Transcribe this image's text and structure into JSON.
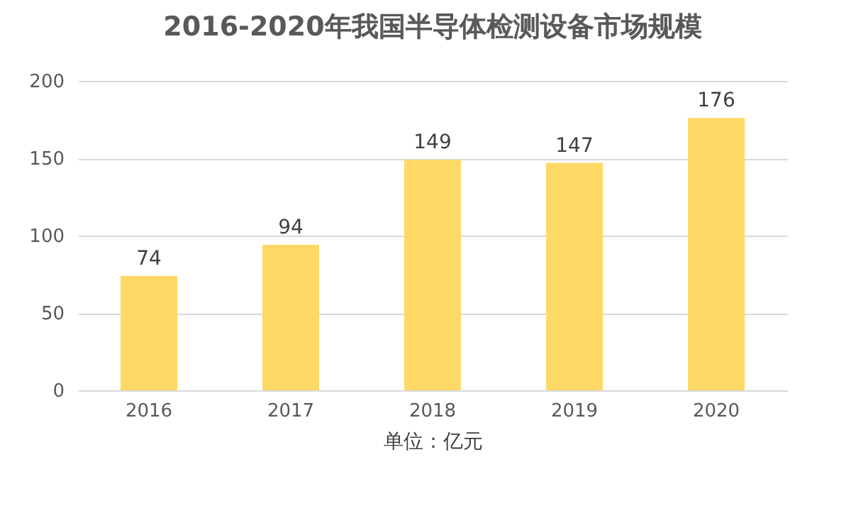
{
  "chart_data": {
    "type": "bar",
    "title": "2016-2020年我国半导体检测设备市场规模",
    "xlabel": "单位：亿元",
    "categories": [
      "2016",
      "2017",
      "2018",
      "2019",
      "2020"
    ],
    "values": [
      74,
      94,
      149,
      147,
      176
    ],
    "color": "#ffd966",
    "ylim": [
      0,
      200
    ],
    "yticks": [
      0,
      50,
      100,
      150,
      200
    ],
    "grid": "y",
    "data_labels": true
  }
}
